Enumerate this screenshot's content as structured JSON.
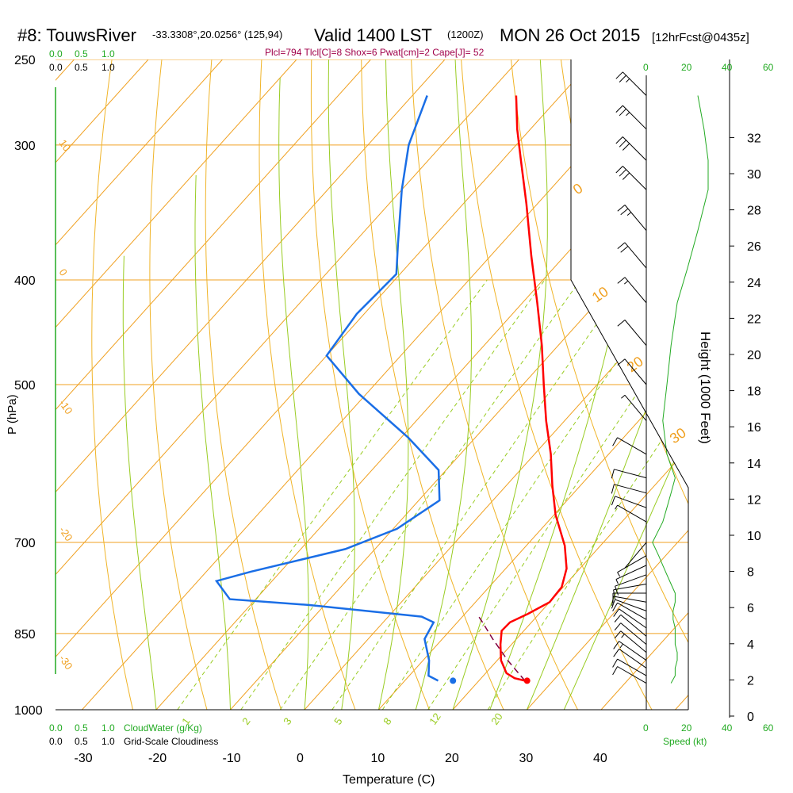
{
  "header": {
    "station": "#8: TouwsRiver",
    "coords": "-33.3308°,20.0256° (125,94)",
    "valid": "Valid 1400 LST",
    "zulu": "(1200Z)",
    "date": "MON 26 Oct 2015",
    "fcst": "[12hrFcst@0435z]",
    "indices": "Plcl=794 Tlcl[C]=8 Shox=6 Pwat[cm]=2 Cape[J]= 52"
  },
  "colors": {
    "temperature": "#ff0000",
    "dewpoint": "#1a6ee6",
    "isotherm": "#f0a020",
    "dry_adiabat": "#f0b428",
    "moist_adiabat": "#99cc22",
    "mixing_ratio": "#99cc22",
    "parcel": "#800040",
    "cloud": "#22aa22",
    "indices": "#a0004a"
  },
  "labels": {
    "cloudwater": "CloudWater (g/Kg)",
    "cloudiness": "Grid-Scale Cloudiness",
    "speed": "Speed (kt)"
  },
  "chart_data": {
    "type": "line",
    "xlabel": "Temperature (C)",
    "ylabel": "P (hPa)",
    "y2label": "Height (1000 Feet)",
    "x_ticks": [
      "-30",
      "-20",
      "-10",
      "0",
      "10",
      "20",
      "30",
      "40"
    ],
    "p_ticks": [
      "250",
      "300",
      "400",
      "500",
      "700",
      "850",
      "1000"
    ],
    "height_ticks": [
      "0",
      "2",
      "4",
      "6",
      "8",
      "10",
      "12",
      "14",
      "16",
      "18",
      "20",
      "22",
      "24",
      "26",
      "28",
      "30",
      "32"
    ],
    "cloud_scale_top": [
      "0.0",
      "0.5",
      "1.0"
    ],
    "cloudiness_scale": [
      "0.0",
      "0.5",
      "1.0"
    ],
    "speed_ticks": [
      "0",
      "20",
      "40",
      "60"
    ],
    "isotherm_labels": [
      "30",
      "20",
      "10",
      "0",
      "-10",
      "-20",
      "-30",
      "10",
      "0",
      "-10",
      "-20",
      "-30"
    ],
    "mixing_ratio_labels": [
      "1",
      "2",
      "3",
      "5",
      "8",
      "12",
      "20"
    ],
    "series": [
      {
        "name": "Temperature",
        "values": [
          {
            "p": 940,
            "t": 26.2
          },
          {
            "p": 935,
            "t": 24.5
          },
          {
            "p": 925,
            "t": 22.8
          },
          {
            "p": 900,
            "t": 20.5
          },
          {
            "p": 870,
            "t": 18.5
          },
          {
            "p": 845,
            "t": 17.0
          },
          {
            "p": 830,
            "t": 17.1
          },
          {
            "p": 815,
            "t": 18.5
          },
          {
            "p": 795,
            "t": 20.0
          },
          {
            "p": 770,
            "t": 19.8
          },
          {
            "p": 740,
            "t": 18.2
          },
          {
            "p": 705,
            "t": 15.2
          },
          {
            "p": 660,
            "t": 10.2
          },
          {
            "p": 620,
            "t": 6.2
          },
          {
            "p": 580,
            "t": 2.2
          },
          {
            "p": 540,
            "t": -2.5
          },
          {
            "p": 500,
            "t": -7.2
          },
          {
            "p": 460,
            "t": -12.2
          },
          {
            "p": 420,
            "t": -18.0
          },
          {
            "p": 380,
            "t": -24.5
          },
          {
            "p": 340,
            "t": -31.5
          },
          {
            "p": 310,
            "t": -37.5
          },
          {
            "p": 290,
            "t": -41.8
          },
          {
            "p": 270,
            "t": -46.0
          }
        ]
      },
      {
        "name": "Dewpoint",
        "values": [
          {
            "p": 940,
            "t": 14.5
          },
          {
            "p": 930,
            "t": 12.6
          },
          {
            "p": 900,
            "t": 10.8
          },
          {
            "p": 860,
            "t": 7.6
          },
          {
            "p": 830,
            "t": 6.8
          },
          {
            "p": 820,
            "t": 4.5
          },
          {
            "p": 800,
            "t": -12.0
          },
          {
            "p": 790,
            "t": -23.5
          },
          {
            "p": 760,
            "t": -27.5
          },
          {
            "p": 745,
            "t": -24.0
          },
          {
            "p": 710,
            "t": -14.0
          },
          {
            "p": 680,
            "t": -9.5
          },
          {
            "p": 640,
            "t": -7.2
          },
          {
            "p": 600,
            "t": -11.0
          },
          {
            "p": 560,
            "t": -19.0
          },
          {
            "p": 510,
            "t": -31.0
          },
          {
            "p": 470,
            "t": -40.0
          },
          {
            "p": 430,
            "t": -41.0
          },
          {
            "p": 395,
            "t": -40.5
          },
          {
            "p": 370,
            "t": -44.0
          },
          {
            "p": 330,
            "t": -50.0
          },
          {
            "p": 300,
            "t": -54.5
          },
          {
            "p": 270,
            "t": -58.0
          }
        ]
      },
      {
        "name": "Parcel",
        "values": [
          {
            "p": 940,
            "t": 26.2
          },
          {
            "p": 900,
            "t": 21.4
          },
          {
            "p": 860,
            "t": 16.8
          },
          {
            "p": 830,
            "t": 13.4
          },
          {
            "p": 815,
            "t": 11.6
          }
        ]
      }
    ],
    "surface_points": [
      {
        "name": "Temperature",
        "p": 940,
        "t": 26.5
      },
      {
        "name": "Dewpoint",
        "p": 940,
        "t": 16.5
      }
    ],
    "wind_barbs": [
      {
        "p": 945,
        "dir": 300,
        "spd": 12
      },
      {
        "p": 930,
        "dir": 300,
        "spd": 14
      },
      {
        "p": 915,
        "dir": 305,
        "spd": 14
      },
      {
        "p": 900,
        "dir": 305,
        "spd": 15
      },
      {
        "p": 885,
        "dir": 310,
        "spd": 15
      },
      {
        "p": 870,
        "dir": 310,
        "spd": 14
      },
      {
        "p": 855,
        "dir": 310,
        "spd": 14
      },
      {
        "p": 840,
        "dir": 305,
        "spd": 14
      },
      {
        "p": 825,
        "dir": 300,
        "spd": 13
      },
      {
        "p": 810,
        "dir": 290,
        "spd": 13
      },
      {
        "p": 795,
        "dir": 280,
        "spd": 14
      },
      {
        "p": 780,
        "dir": 270,
        "spd": 14
      },
      {
        "p": 765,
        "dir": 260,
        "spd": 12
      },
      {
        "p": 750,
        "dir": 250,
        "spd": 10
      },
      {
        "p": 735,
        "dir": 245,
        "spd": 8
      },
      {
        "p": 720,
        "dir": 240,
        "spd": 6
      },
      {
        "p": 700,
        "dir": 220,
        "spd": 3
      },
      {
        "p": 670,
        "dir": 300,
        "spd": 8
      },
      {
        "p": 650,
        "dir": 290,
        "spd": 10
      },
      {
        "p": 630,
        "dir": 285,
        "spd": 12
      },
      {
        "p": 610,
        "dir": 285,
        "spd": 14
      },
      {
        "p": 580,
        "dir": 300,
        "spd": 10
      },
      {
        "p": 540,
        "dir": 320,
        "spd": 8
      },
      {
        "p": 500,
        "dir": 320,
        "spd": 10
      },
      {
        "p": 460,
        "dir": 320,
        "spd": 12
      },
      {
        "p": 420,
        "dir": 320,
        "spd": 15
      },
      {
        "p": 390,
        "dir": 320,
        "spd": 20
      },
      {
        "p": 360,
        "dir": 320,
        "spd": 25
      },
      {
        "p": 330,
        "dir": 315,
        "spd": 30
      },
      {
        "p": 310,
        "dir": 315,
        "spd": 30
      },
      {
        "p": 290,
        "dir": 315,
        "spd": 28
      },
      {
        "p": 270,
        "dir": 315,
        "spd": 25
      }
    ]
  }
}
